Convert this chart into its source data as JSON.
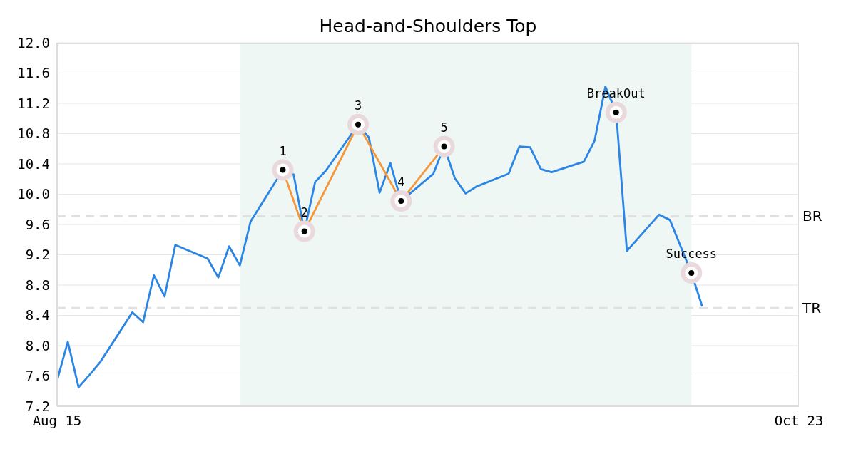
{
  "chart_data": {
    "type": "line",
    "title": "Head-and-Shoulders Top",
    "x": [
      "--08-15",
      "--08-16",
      "--08-17",
      "--08-18",
      "--08-19",
      "--08-22",
      "--08-23",
      "--08-24",
      "--08-25",
      "--08-26",
      "--08-29",
      "--08-30",
      "--08-31",
      "--09-01",
      "--09-02",
      "--09-05",
      "--09-06",
      "--09-07",
      "--09-08",
      "--09-09",
      "--09-12",
      "--09-13",
      "--09-14",
      "--09-15",
      "--09-16",
      "--09-19",
      "--09-20",
      "--09-21",
      "--09-22",
      "--09-23",
      "--09-26",
      "--09-27",
      "--09-28",
      "--09-29",
      "--09-30",
      "--10-03",
      "--10-04",
      "--10-05",
      "--10-06",
      "--10-07",
      "--10-10",
      "--10-11",
      "--10-12",
      "--10-13",
      "--10-14"
    ],
    "series": [
      {
        "color": "#2b85e4",
        "values": [
          7.54,
          8.05,
          7.45,
          7.61,
          7.78,
          8.44,
          8.31,
          8.93,
          8.65,
          9.33,
          9.15,
          8.9,
          9.31,
          9.06,
          9.64,
          10.32,
          10.26,
          9.51,
          10.16,
          10.31,
          10.92,
          10.75,
          10.02,
          10.41,
          9.91,
          10.27,
          10.63,
          10.21,
          10.01,
          10.1,
          10.27,
          10.63,
          10.62,
          10.33,
          10.29,
          10.43,
          10.71,
          11.42,
          11.08,
          9.25,
          9.73,
          9.66,
          9.31,
          8.96,
          8.52
        ]
      },
      {
        "color": "#f5973b",
        "marker": "circle",
        "x": [
          "--09-05",
          "--09-07",
          "--09-12",
          "--09-16",
          "--09-20"
        ],
        "values": [
          10.32,
          9.51,
          10.92,
          9.91,
          10.63
        ]
      },
      {
        "type": "scatter",
        "marker": "circle",
        "color": "#000000",
        "x": [
          "--10-06",
          "--10-13"
        ],
        "values": [
          11.08,
          8.96
        ]
      }
    ],
    "xlim": [
      "--08-15",
      "--10-23"
    ],
    "xticks": [
      {
        "value": "--08-15",
        "label": "Aug 15"
      },
      {
        "value": "--10-23",
        "label": "Oct 23"
      }
    ],
    "ylim": [
      7.2,
      12
    ],
    "yticks": [
      7.2,
      7.6,
      {
        "value": 8,
        "label": "8.0"
      },
      8.4,
      8.8,
      9.2,
      9.6,
      {
        "value": 10,
        "label": "10.0"
      },
      10.4,
      10.8,
      11.2,
      11.6,
      {
        "value": 12,
        "label": "12.0"
      }
    ],
    "grid": "y",
    "marker": "none",
    "line_style": "solid",
    "bands": [
      {
        "axis": "x",
        "from": "--09-01",
        "to": "--10-13",
        "color": "#eef7f3"
      }
    ],
    "ref_lines": [
      {
        "axis": "y",
        "value": 9.71,
        "label": "BR",
        "color": "#e0e0e0",
        "line_style": "dashed"
      },
      {
        "axis": "y",
        "value": 8.5,
        "label": "TR",
        "color": "#e0e0e0",
        "line_style": "dashed"
      }
    ],
    "annotations": [
      {
        "text": "1",
        "x": "--09-05",
        "y": 10.32
      },
      {
        "text": "2",
        "x": "--09-07",
        "y": 9.51
      },
      {
        "text": "3",
        "x": "--09-12",
        "y": 10.92
      },
      {
        "text": "4",
        "x": "--09-16",
        "y": 9.91
      },
      {
        "text": "5",
        "x": "--09-20",
        "y": 10.63
      },
      {
        "text": "BreakOut",
        "x": "--10-06",
        "y": 11.08
      },
      {
        "text": "Success",
        "x": "--10-13",
        "y": 8.96
      }
    ]
  }
}
